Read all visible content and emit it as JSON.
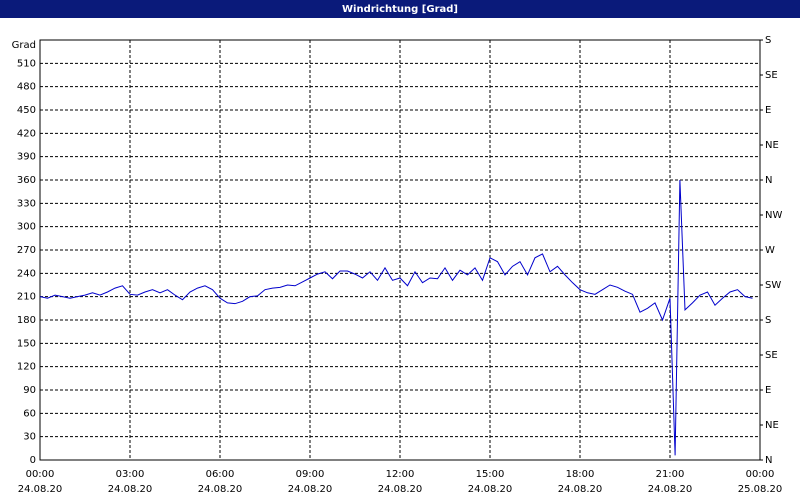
{
  "chart_data": {
    "type": "line",
    "title": "Windrichtung [Grad]",
    "y_label": "Grad",
    "x": [
      0,
      0.25,
      0.5,
      0.75,
      1,
      1.25,
      1.5,
      1.75,
      2,
      2.25,
      2.5,
      2.75,
      3,
      3.25,
      3.5,
      3.75,
      4,
      4.25,
      4.5,
      4.75,
      5,
      5.25,
      5.5,
      5.75,
      6,
      6.25,
      6.5,
      6.75,
      7,
      7.25,
      7.5,
      7.75,
      8,
      8.25,
      8.5,
      8.75,
      9,
      9.25,
      9.5,
      9.75,
      10,
      10.25,
      10.5,
      10.75,
      11,
      11.25,
      11.5,
      11.75,
      12,
      12.25,
      12.5,
      12.75,
      13,
      13.25,
      13.5,
      13.75,
      14,
      14.25,
      14.5,
      14.75,
      15,
      15.25,
      15.5,
      15.75,
      16,
      16.25,
      16.5,
      16.75,
      17,
      17.25,
      17.5,
      17.75,
      18,
      18.25,
      18.5,
      18.75,
      19,
      19.25,
      19.5,
      19.75,
      20,
      20.25,
      20.5,
      20.75,
      21,
      21.17,
      21.33,
      21.5,
      21.75,
      22,
      22.25,
      22.5,
      22.75,
      23,
      23.25,
      23.5,
      23.75
    ],
    "series": [
      {
        "color": "#0000cc",
        "values": [
          210,
          208,
          212,
          210,
          208,
          210,
          212,
          215,
          212,
          216,
          221,
          224,
          213,
          212,
          216,
          219,
          215,
          219,
          212,
          206,
          216,
          221,
          224,
          219,
          208,
          202,
          201,
          204,
          210,
          211,
          219,
          221,
          222,
          225,
          224,
          229,
          234,
          239,
          242,
          233,
          243,
          243,
          239,
          234,
          242,
          231,
          247,
          231,
          234,
          224,
          242,
          228,
          234,
          233,
          247,
          231,
          244,
          238,
          247,
          231,
          260,
          255,
          238,
          249,
          255,
          238,
          260,
          265,
          242,
          249,
          238,
          228,
          219,
          215,
          213,
          219,
          225,
          222,
          217,
          213,
          190,
          195,
          202,
          180,
          208,
          6,
          360,
          193,
          202,
          212,
          216,
          199,
          208,
          216,
          219,
          210,
          208
        ]
      }
    ],
    "xlim": [
      0,
      24
    ],
    "xticks": [
      {
        "value": 0,
        "label": "00:00",
        "date": "24.08.20"
      },
      {
        "value": 3,
        "label": "03:00",
        "date": "24.08.20"
      },
      {
        "value": 6,
        "label": "06:00",
        "date": "24.08.20"
      },
      {
        "value": 9,
        "label": "09:00",
        "date": "24.08.20"
      },
      {
        "value": 12,
        "label": "12:00",
        "date": "24.08.20"
      },
      {
        "value": 15,
        "label": "15:00",
        "date": "24.08.20"
      },
      {
        "value": 18,
        "label": "18:00",
        "date": "24.08.20"
      },
      {
        "value": 21,
        "label": "21:00",
        "date": "24.08.20"
      },
      {
        "value": 24,
        "label": "00:00",
        "date": "25.08.20"
      }
    ],
    "ylim": [
      0,
      540
    ],
    "yticks": [
      0,
      30,
      60,
      90,
      120,
      150,
      180,
      210,
      240,
      270,
      300,
      330,
      360,
      390,
      420,
      450,
      480,
      510
    ],
    "y2lim": [
      0,
      540
    ],
    "y2ticks": [
      {
        "value": 0,
        "label": "N"
      },
      {
        "value": 45,
        "label": "NE"
      },
      {
        "value": 90,
        "label": "E"
      },
      {
        "value": 135,
        "label": "SE"
      },
      {
        "value": 180,
        "label": "S"
      },
      {
        "value": 225,
        "label": "SW"
      },
      {
        "value": 270,
        "label": "W"
      },
      {
        "value": 315,
        "label": "NW"
      },
      {
        "value": 360,
        "label": "N"
      },
      {
        "value": 405,
        "label": "NE"
      },
      {
        "value": 450,
        "label": "E"
      },
      {
        "value": 495,
        "label": "SE"
      },
      {
        "value": 540,
        "label": "S"
      }
    ],
    "grid": true
  }
}
